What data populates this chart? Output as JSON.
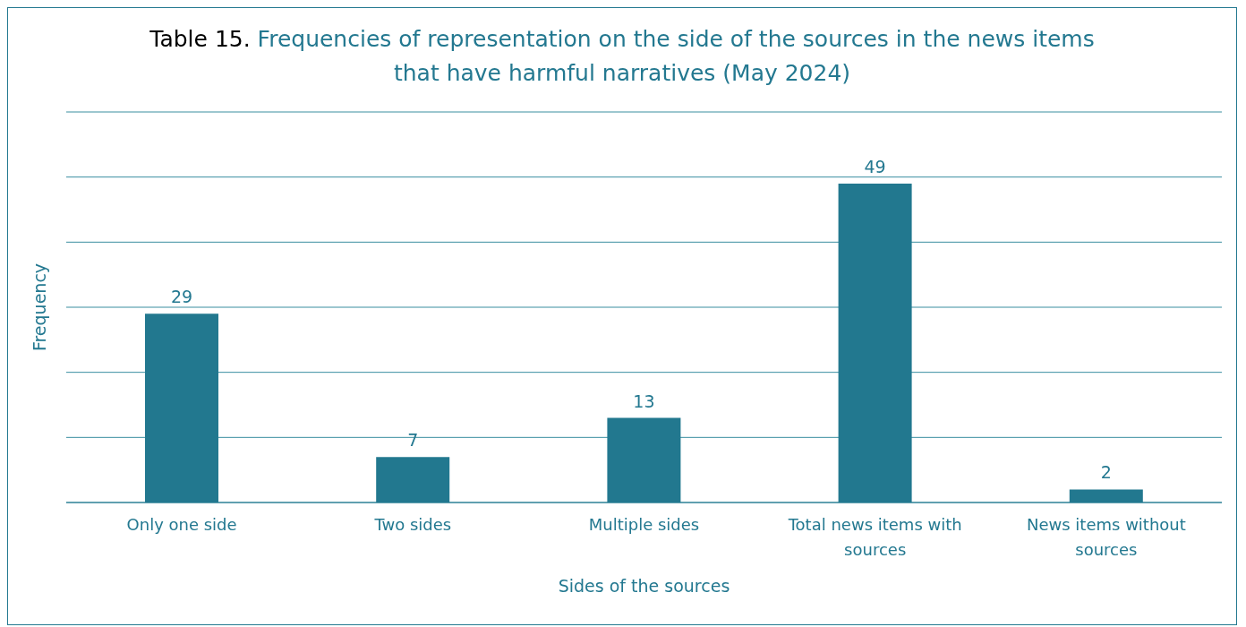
{
  "chart_data": {
    "type": "bar",
    "title": "Table 15. Frequencies of representation on the side of the sources in the news items that have harmful narratives (May 2024)",
    "xlabel": "Sides of the sources",
    "ylabel": "Frequency",
    "categories": [
      "Only one side",
      "Two sides",
      "Multiple sides",
      "Total news items with sources",
      "News items without sources"
    ],
    "values": [
      29,
      7,
      13,
      49,
      2
    ],
    "color": "#22788f",
    "ylim": [
      0,
      60
    ],
    "yticks": [
      {
        "value": 0,
        "label": null
      },
      {
        "value": 10,
        "label": null
      },
      {
        "value": 20,
        "label": null
      },
      {
        "value": 30,
        "label": null
      },
      {
        "value": 40,
        "label": null
      },
      {
        "value": 50,
        "label": null
      },
      {
        "value": 60,
        "label": null
      }
    ],
    "tick_labels": "x",
    "grid": "y",
    "data_labels": true
  }
}
